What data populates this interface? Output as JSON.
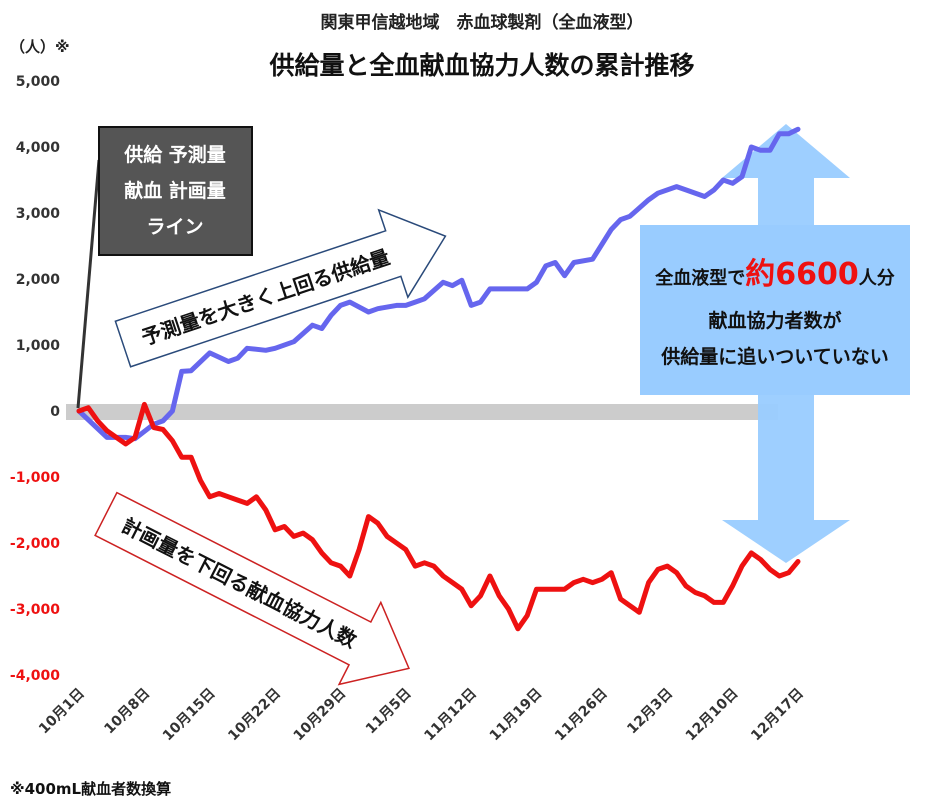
{
  "chart_data": {
    "type": "line",
    "title": "供給量と全血献血協力人数の累計推移",
    "subtitle": "関東甲信越地域　赤血球製剤（全血液型）",
    "ylabel": "（人）※",
    "footnote": "※400mL献血者数換算",
    "ylim": [
      -4000,
      5000
    ],
    "yticks": [
      "5,000",
      "4,000",
      "3,000",
      "2,000",
      "1,000",
      "0",
      "-1,000",
      "-2,000",
      "-3,000",
      "-4,000"
    ],
    "ytick_values": [
      5000,
      4000,
      3000,
      2000,
      1000,
      0,
      -1000,
      -2000,
      -3000,
      -4000
    ],
    "xlabels": [
      "10月1日",
      "10月8日",
      "10月15日",
      "10月22日",
      "10月29日",
      "11月5日",
      "11月12日",
      "11月19日",
      "11月26日",
      "12月3日",
      "12月10日",
      "12月17日"
    ],
    "x_note": "daily points from 10月1日 (day 0) to 12月17日 (day 77)",
    "series": [
      {
        "key": "supply",
        "color": "#6666ee",
        "x": [
          0,
          3,
          5,
          6,
          8,
          9,
          10,
          11,
          12,
          14,
          16,
          17,
          18,
          20,
          21,
          23,
          25,
          26,
          27,
          28,
          29,
          31,
          32,
          34,
          35,
          36,
          37,
          39,
          40,
          41,
          42,
          43,
          44,
          45,
          46,
          48,
          49,
          50,
          51,
          52,
          53,
          55,
          57,
          58,
          59,
          61,
          62,
          64,
          65,
          67,
          68,
          69,
          70,
          71,
          72,
          73,
          74,
          75,
          76,
          77
        ],
        "y": [
          0,
          -400,
          -400,
          -420,
          -200,
          -150,
          0,
          600,
          610,
          880,
          750,
          800,
          950,
          920,
          950,
          1050,
          1300,
          1250,
          1450,
          1600,
          1650,
          1500,
          1550,
          1600,
          1600,
          1650,
          1700,
          1950,
          1900,
          1980,
          1600,
          1650,
          1850,
          1850,
          1850,
          1850,
          1950,
          2200,
          2250,
          2050,
          2250,
          2300,
          2750,
          2900,
          2950,
          3200,
          3300,
          3400,
          3350,
          3250,
          3350,
          3500,
          3450,
          3550,
          4000,
          3950,
          3950,
          4200,
          4200,
          4270
        ]
      },
      {
        "key": "donation",
        "color": "#ee1111",
        "x": [
          0,
          1,
          2,
          3,
          4,
          5,
          6,
          7,
          8,
          9,
          10,
          11,
          12,
          13,
          14,
          15,
          16,
          17,
          18,
          19,
          20,
          21,
          22,
          23,
          24,
          25,
          26,
          27,
          28,
          29,
          30,
          31,
          32,
          33,
          34,
          35,
          36,
          37,
          38,
          39,
          40,
          41,
          42,
          43,
          44,
          45,
          46,
          47,
          48,
          49,
          50,
          51,
          52,
          53,
          54,
          55,
          56,
          57,
          58,
          59,
          60,
          61,
          62,
          63,
          64,
          65,
          66,
          67,
          68,
          69,
          70,
          71,
          72,
          73,
          74,
          75,
          76,
          77
        ],
        "y": [
          0,
          50,
          -150,
          -300,
          -400,
          -500,
          -400,
          100,
          -250,
          -280,
          -450,
          -700,
          -700,
          -1050,
          -1300,
          -1250,
          -1300,
          -1350,
          -1400,
          -1300,
          -1500,
          -1800,
          -1750,
          -1900,
          -1850,
          -1950,
          -2150,
          -2300,
          -2350,
          -2500,
          -2100,
          -1600,
          -1700,
          -1900,
          -2000,
          -2100,
          -2350,
          -2300,
          -2350,
          -2500,
          -2600,
          -2700,
          -2950,
          -2800,
          -2500,
          -2800,
          -3000,
          -3300,
          -3100,
          -2700,
          -2700,
          -2700,
          -2700,
          -2600,
          -2550,
          -2600,
          -2550,
          -2450,
          -2850,
          -2950,
          -3050,
          -2600,
          -2400,
          -2350,
          -2450,
          -2650,
          -2750,
          -2800,
          -2900,
          -2900,
          -2650,
          -2350,
          -2150,
          -2250,
          -2400,
          -2500,
          -2450,
          -2280
        ]
      }
    ],
    "annotations": {
      "box_lines": [
        "供給 予測量",
        "献血 計画量",
        "ライン"
      ],
      "up_arrow_text": "予測量を大きく上回る供給量",
      "down_arrow_text": "計画量を下回る献血協力人数",
      "gap_prefix": "全血液型で",
      "gap_value": "約6600",
      "gap_suffix": "人分",
      "gap_line2": "献血協力者数が",
      "gap_line3": "供給量に追いついていない"
    },
    "grid": false,
    "legend": "none"
  },
  "colors": {
    "supply": "#6666ee",
    "donation": "#ee1111",
    "zero_band": "#cccccc",
    "big_arrow": "#99ccff",
    "box_bg": "#555555",
    "gap_value": "#ee1111"
  }
}
